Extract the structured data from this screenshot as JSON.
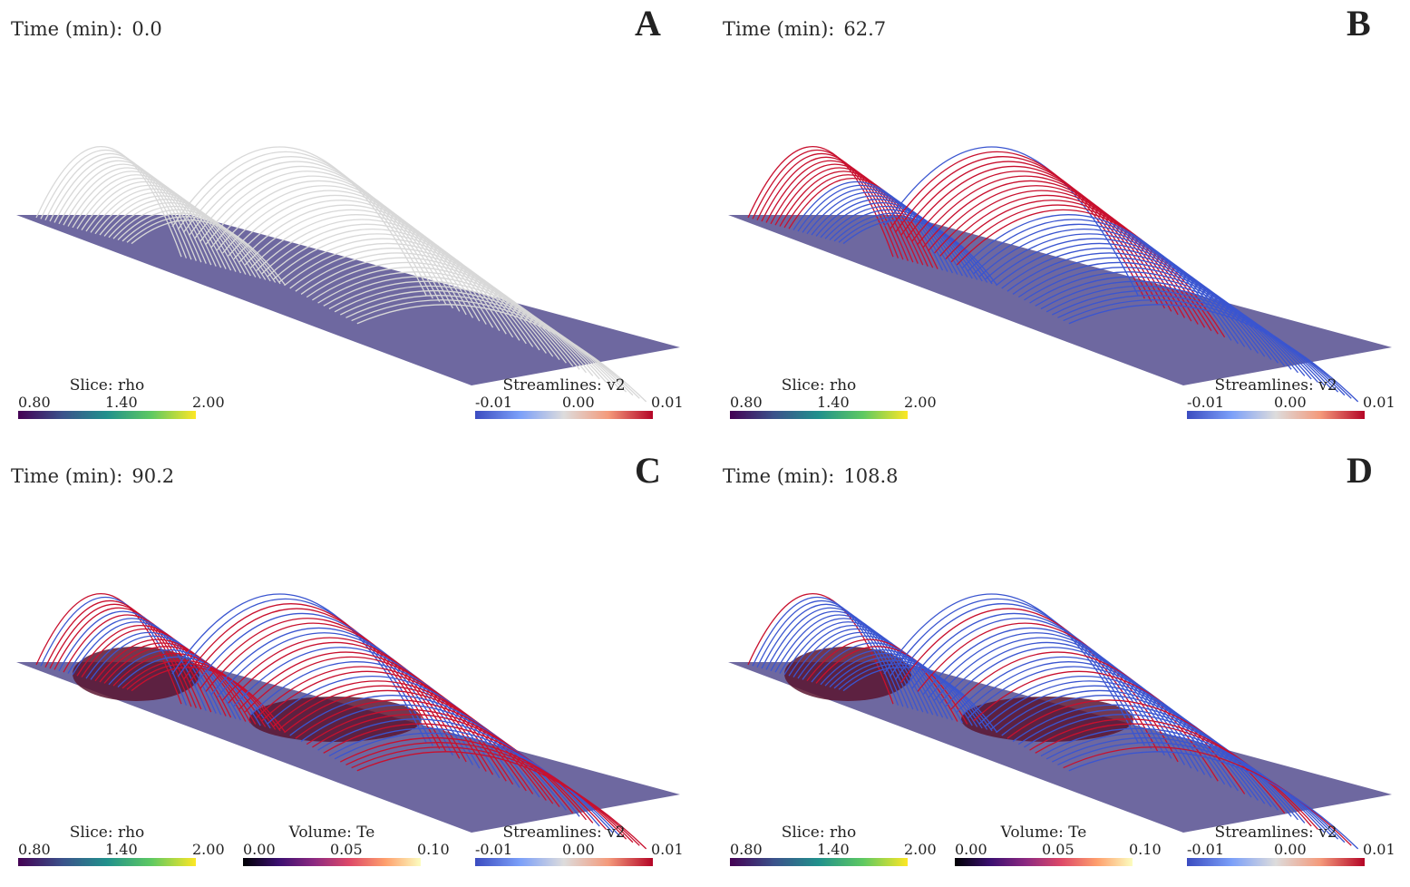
{
  "figure": {
    "panels": [
      {
        "id": "A",
        "letter": "A",
        "time_label": "Time (min):",
        "time_value": "0.0",
        "streamline_style": "uniform-gray",
        "has_volume": false,
        "legends": [
          {
            "key": "slice",
            "title": "Slice: rho",
            "min": "0.80",
            "mid": "1.40",
            "max": "2.00",
            "colormap": "viridis"
          },
          {
            "key": "streamlines",
            "title": "Streamlines: v2",
            "min": "-0.01",
            "mid": "0.00",
            "max": "0.01",
            "colormap": "coolwarm"
          }
        ]
      },
      {
        "id": "B",
        "letter": "B",
        "time_label": "Time (min):",
        "time_value": "62.7",
        "streamline_style": "red-blue",
        "has_volume": false,
        "legends": [
          {
            "key": "slice",
            "title": "Slice: rho",
            "min": "0.80",
            "mid": "1.40",
            "max": "2.00",
            "colormap": "viridis"
          },
          {
            "key": "streamlines",
            "title": "Streamlines: v2",
            "min": "-0.01",
            "mid": "0.00",
            "max": "0.01",
            "colormap": "coolwarm"
          }
        ]
      },
      {
        "id": "C",
        "letter": "C",
        "time_label": "Time (min):",
        "time_value": "90.2",
        "streamline_style": "mixed",
        "has_volume": true,
        "legends": [
          {
            "key": "slice",
            "title": "Slice: rho",
            "min": "0.80",
            "mid": "1.40",
            "max": "2.00",
            "colormap": "viridis"
          },
          {
            "key": "volume",
            "title": "Volume: Te",
            "min": "0.00",
            "mid": "0.05",
            "max": "0.10",
            "colormap": "magma"
          },
          {
            "key": "streamlines",
            "title": "Streamlines: v2",
            "min": "-0.01",
            "mid": "0.00",
            "max": "0.01",
            "colormap": "coolwarm"
          }
        ]
      },
      {
        "id": "D",
        "letter": "D",
        "time_label": "Time (min):",
        "time_value": "108.8",
        "streamline_style": "mostly-blue",
        "has_volume": true,
        "legends": [
          {
            "key": "slice",
            "title": "Slice: rho",
            "min": "0.80",
            "mid": "1.40",
            "max": "2.00",
            "colormap": "viridis"
          },
          {
            "key": "volume",
            "title": "Volume: Te",
            "min": "0.00",
            "mid": "0.05",
            "max": "0.10",
            "colormap": "magma"
          },
          {
            "key": "streamlines",
            "title": "Streamlines: v2",
            "min": "-0.01",
            "mid": "0.00",
            "max": "0.01",
            "colormap": "coolwarm"
          }
        ]
      }
    ],
    "colors": {
      "slice_plane": "#6e68a0",
      "streamline_gray": "#d8d8d8",
      "streamline_red": "#c8102e",
      "streamline_blue": "#3a55d0",
      "volume_dark": "#5a1530"
    }
  }
}
